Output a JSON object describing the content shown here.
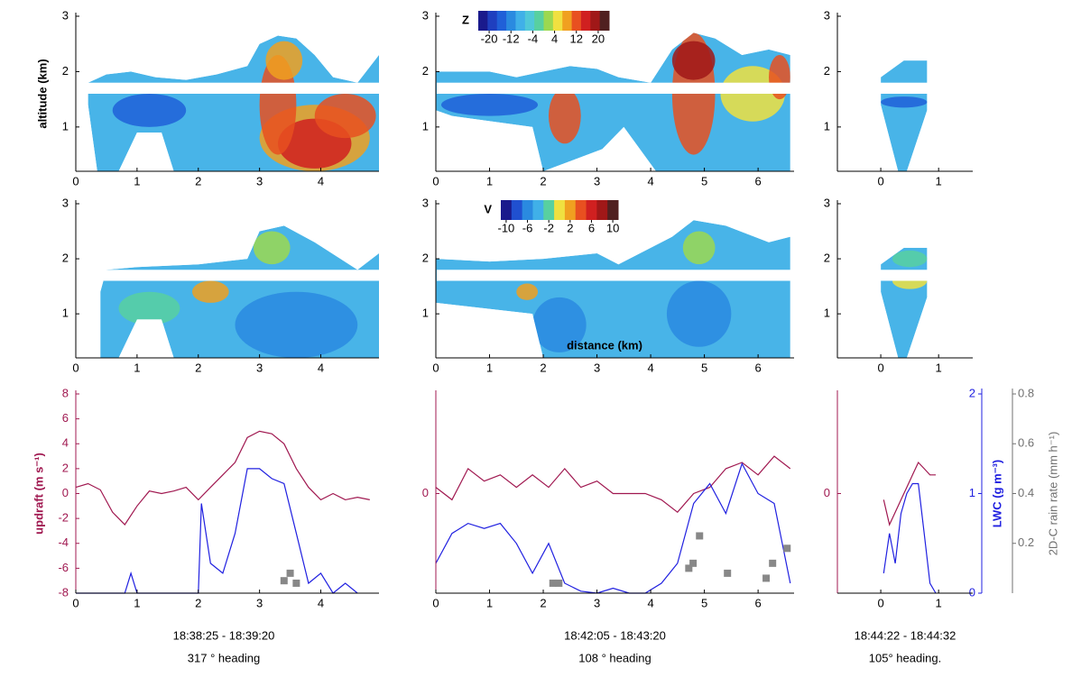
{
  "chart_data": [
    {
      "type": "heatmap",
      "ylabel": "altitude (km)",
      "xlim": [
        0,
        4.95
      ],
      "xticks": [
        0,
        1,
        2,
        3,
        4
      ],
      "ylim": [
        0.2,
        3
      ],
      "yticks": [
        1,
        2,
        3
      ]
    },
    {
      "type": "heatmap",
      "xlim": [
        0,
        6.67
      ],
      "xticks": [
        0,
        1,
        2,
        3,
        4,
        5,
        6
      ],
      "ylim": [
        0.2,
        3
      ],
      "yticks": [
        1,
        2,
        3
      ],
      "colorbar": {
        "label": "Z",
        "clim": [
          -24,
          24
        ],
        "ticks": [
          -20,
          -12,
          -4,
          4,
          12,
          20
        ],
        "colors": [
          "#1a1a8c",
          "#1f3fbf",
          "#2060d8",
          "#2a8ae0",
          "#40b0e8",
          "#50c8d8",
          "#58d0a0",
          "#9cd850",
          "#f0e040",
          "#f0a020",
          "#e85020",
          "#d02020",
          "#a01818",
          "#502020"
        ]
      }
    },
    {
      "type": "heatmap",
      "xlim": [
        -0.75,
        1.59
      ],
      "xticks": [
        0,
        1
      ],
      "ylim": [
        0.2,
        3
      ],
      "yticks": [
        1,
        2,
        3
      ]
    },
    {
      "type": "heatmap",
      "xlim": [
        0,
        4.95
      ],
      "xticks": [
        0,
        1,
        2,
        3,
        4
      ],
      "ylim": [
        0.2,
        3
      ],
      "yticks": [
        1,
        2,
        3
      ]
    },
    {
      "type": "heatmap",
      "xlabel": "distance (km)",
      "xlim": [
        0,
        6.67
      ],
      "xticks": [
        0,
        1,
        2,
        3,
        4,
        5,
        6
      ],
      "ylim": [
        0.2,
        3
      ],
      "yticks": [
        1,
        2,
        3
      ],
      "colorbar": {
        "label": "V",
        "clim": [
          -11,
          11
        ],
        "ticks": [
          -10,
          -6,
          -2,
          2,
          6,
          10
        ],
        "colors": [
          "#1a1a8c",
          "#2050d0",
          "#2a8ae0",
          "#40b0e8",
          "#58d0a0",
          "#f0e040",
          "#f0a020",
          "#e85020",
          "#d02020",
          "#a01818",
          "#502020"
        ]
      }
    },
    {
      "type": "heatmap",
      "xlim": [
        -0.75,
        1.59
      ],
      "xticks": [
        0,
        1
      ],
      "ylim": [
        0.2,
        3
      ],
      "yticks": [
        1,
        2,
        3
      ]
    },
    {
      "type": "line",
      "ylabel": "updraft (m s⁻¹)",
      "xlim": [
        0,
        4.95
      ],
      "xticks": [
        0,
        1,
        2,
        3,
        4
      ],
      "ylim": [
        -8,
        8
      ],
      "yticks": [
        -8,
        -6,
        -4,
        -2,
        0,
        2,
        4,
        6,
        8
      ],
      "y2lim": [
        0,
        2
      ],
      "y3lim": [
        0,
        0.8
      ],
      "caption": [
        "18:38:25 - 18:39:20",
        "317 ° heading"
      ],
      "series": [
        {
          "color": "#a01850",
          "x": [
            0,
            0.2,
            0.4,
            0.6,
            0.8,
            1.0,
            1.2,
            1.4,
            1.6,
            1.8,
            2.0,
            2.2,
            2.4,
            2.6,
            2.8,
            3.0,
            3.2,
            3.4,
            3.6,
            3.8,
            4.0,
            4.2,
            4.4,
            4.6,
            4.8
          ],
          "values": [
            0.5,
            0.8,
            0.3,
            -1.5,
            -2.5,
            -1,
            0.2,
            0,
            0.2,
            0.5,
            -0.5,
            0.5,
            1.5,
            2.5,
            4.5,
            5,
            4.8,
            4,
            2,
            0.5,
            -0.5,
            0,
            -0.5,
            -0.3,
            -0.5
          ]
        },
        {
          "color": "#2020e0",
          "axis": "y2",
          "x": [
            0,
            0.8,
            0.9,
            1.0,
            1.9,
            2.0,
            2.05,
            2.2,
            2.4,
            2.6,
            2.8,
            3.0,
            3.2,
            3.4,
            3.6,
            3.8,
            4.0,
            4.2,
            4.4,
            4.6
          ],
          "values": [
            0,
            0,
            0.2,
            0,
            0,
            0,
            0.9,
            0.3,
            0.2,
            0.6,
            1.25,
            1.25,
            1.15,
            1.1,
            0.6,
            0.1,
            0.2,
            0,
            0.1,
            0
          ]
        },
        {
          "type": "scatter",
          "color": "#888888",
          "axis": "y3",
          "x": [
            3.4,
            3.5,
            3.6
          ],
          "values": [
            0.05,
            0.08,
            0.04
          ]
        }
      ]
    },
    {
      "type": "line",
      "xlim": [
        0,
        6.67
      ],
      "xticks": [
        0,
        1,
        2,
        3,
        4,
        5,
        6
      ],
      "ylim": [
        -8,
        8
      ],
      "yticks": [
        0
      ],
      "y2lim": [
        0,
        2
      ],
      "y3lim": [
        0,
        0.8
      ],
      "caption": [
        "18:42:05 - 18:43:20",
        "108 ° heading"
      ],
      "series": [
        {
          "color": "#a01850",
          "x": [
            0,
            0.3,
            0.6,
            0.9,
            1.2,
            1.5,
            1.8,
            2.1,
            2.4,
            2.7,
            3.0,
            3.3,
            3.6,
            3.9,
            4.2,
            4.5,
            4.8,
            5.1,
            5.4,
            5.7,
            6.0,
            6.3,
            6.6
          ],
          "values": [
            0.5,
            -0.5,
            2,
            1,
            1.5,
            0.5,
            1.5,
            0.5,
            2,
            0.5,
            1,
            0,
            0,
            0,
            -0.5,
            -1.5,
            0,
            0.5,
            2,
            2.5,
            1.5,
            3,
            2
          ]
        },
        {
          "color": "#2020e0",
          "axis": "y2",
          "x": [
            0,
            0.3,
            0.6,
            0.9,
            1.2,
            1.5,
            1.8,
            2.1,
            2.4,
            2.7,
            3.0,
            3.3,
            3.6,
            3.9,
            4.2,
            4.5,
            4.8,
            5.1,
            5.4,
            5.7,
            6.0,
            6.3,
            6.6
          ],
          "values": [
            0.3,
            0.6,
            0.7,
            0.65,
            0.7,
            0.5,
            0.2,
            0.5,
            0.1,
            0.02,
            0,
            0.05,
            0,
            0,
            0.1,
            0.3,
            0.9,
            1.1,
            0.8,
            1.3,
            1.0,
            0.9,
            0.1
          ]
        },
        {
          "type": "scatter",
          "color": "#888888",
          "axis": "y3",
          "x": [
            2.18,
            2.29,
            4.71,
            4.79,
            4.91,
            5.43,
            6.15,
            6.27,
            6.54
          ],
          "values": [
            0.04,
            0.04,
            0.1,
            0.12,
            0.23,
            0.08,
            0.06,
            0.12,
            0.18
          ]
        }
      ]
    },
    {
      "type": "line",
      "xlim": [
        -0.75,
        1.59
      ],
      "xticks": [
        0,
        1
      ],
      "ylim": [
        -8,
        8
      ],
      "yticks": [
        0
      ],
      "y2label": "LWC (g m⁻³)",
      "y2lim": [
        0,
        2
      ],
      "y2ticks": [
        0,
        1,
        2
      ],
      "y3label": "2D-C rain rate (mm h⁻¹)",
      "y3lim": [
        0,
        0.8
      ],
      "y3ticks": [
        0.2,
        0.4,
        0.6,
        0.8
      ],
      "caption": [
        "18:44:22 - 18:44:32",
        "105° heading."
      ],
      "series": [
        {
          "color": "#a01850",
          "x": [
            0.05,
            0.15,
            0.25,
            0.35,
            0.45,
            0.55,
            0.65,
            0.75,
            0.85,
            0.95
          ],
          "values": [
            -0.5,
            -2.5,
            -1.5,
            -0.5,
            0.5,
            1.5,
            2.5,
            2,
            1.5,
            1.5
          ]
        },
        {
          "color": "#2020e0",
          "axis": "y2",
          "x": [
            0.05,
            0.15,
            0.25,
            0.35,
            0.45,
            0.55,
            0.65,
            0.75,
            0.85,
            0.95
          ],
          "values": [
            0.2,
            0.6,
            0.3,
            0.8,
            1.0,
            1.1,
            1.1,
            0.6,
            0.1,
            0
          ]
        }
      ]
    }
  ]
}
